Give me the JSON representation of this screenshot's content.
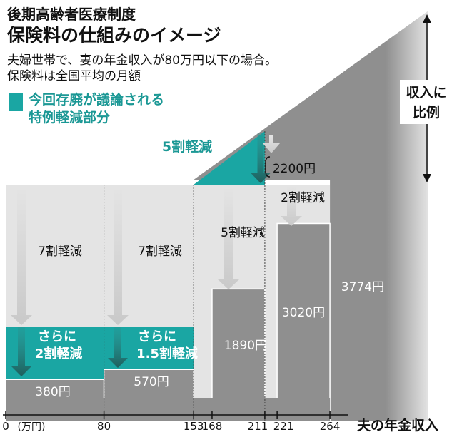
{
  "header": {
    "kicker": "後期高齢者医療制度",
    "title": "保険料の仕組みのイメージ",
    "subtitle_line1": "夫婦世帯で、妻の年金収入が80万円以下の場合。",
    "subtitle_line2": "保険料は全国平均の月額"
  },
  "legend": {
    "line1": "今回存廃が議論される",
    "line2": "特例軽減部分",
    "color": "#1aa6a3"
  },
  "chart_data": {
    "type": "bar",
    "title": "",
    "xlabel": "夫の年金収入",
    "x_unit": "(万円)",
    "ylabel": "",
    "x_ticks": [
      "0",
      "80",
      "153",
      "168",
      "211",
      "221",
      "264"
    ],
    "categories": [
      "0-80",
      "80-153",
      "168-211",
      "221-264",
      "264-"
    ],
    "series": [
      {
        "name": "保険料",
        "values": [
          380,
          570,
          1890,
          3020,
          3774
        ]
      }
    ],
    "value_labels": [
      "380円",
      "570円",
      "1890円",
      "3020円",
      "3774円"
    ],
    "reduction_labels": [
      "7割軽減",
      "7割軽減",
      "5割軽減",
      "2割軽減"
    ],
    "special_reduction_labels": [
      [
        "さらに",
        "2割軽減"
      ],
      [
        "さらに",
        "1.5割軽減"
      ],
      [
        "5割軽減"
      ]
    ],
    "special_reduction_amount": "2200円",
    "income_proportional_label": [
      "収入に",
      "比例"
    ],
    "colors": {
      "teal": "#1aa6a3",
      "teal_text": "#1b9895",
      "bar": "#8f8f8f",
      "band": "#e4e4e4",
      "arrow": "#c9c9c9"
    }
  }
}
